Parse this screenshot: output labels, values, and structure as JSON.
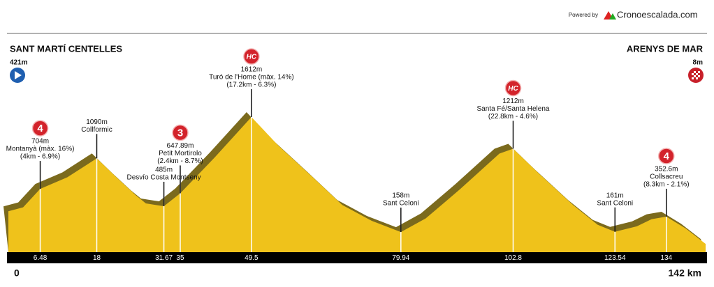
{
  "header": {
    "powered": "Powered by",
    "brand": "Cronoescalada.com"
  },
  "chart_data": {
    "type": "area",
    "color": "#efc21b",
    "shade_color": "#7b6a1d",
    "start": {
      "name": "SANT MARTÍ CENTELLES",
      "label": "421m"
    },
    "finish": {
      "name": "ARENYS DE MAR",
      "label": "8m"
    },
    "x": [
      0,
      3,
      6.48,
      12,
      18,
      22,
      26,
      28,
      30,
      31.67,
      35,
      42,
      49.5,
      55,
      62,
      68,
      74,
      79.94,
      85,
      92,
      100,
      102.8,
      108,
      115,
      120,
      123.54,
      128,
      131,
      134,
      138,
      142
    ],
    "values": [
      421,
      470,
      704,
      850,
      1090,
      850,
      620,
      520,
      500,
      485,
      647.89,
      1100,
      1612,
      1250,
      850,
      500,
      300,
      158,
      330,
      700,
      1150,
      1212,
      900,
      500,
      250,
      161,
      230,
      320,
      352.6,
      200,
      8
    ],
    "points": [
      {
        "x": 6.48,
        "value": 704,
        "value_label": "704m",
        "name": "Montanyà (màx. 16%)",
        "detail": "(4km - 6.9%)",
        "category": "4"
      },
      {
        "x": 18,
        "value": 1090,
        "value_label": "1090m",
        "name": "Collformic"
      },
      {
        "x": 31.67,
        "value": 485,
        "value_label": "485m",
        "name": "Desvío Costa Montseny"
      },
      {
        "x": 35,
        "value": 647.89,
        "value_label": "647.89m",
        "name": "Petit Mortirolo",
        "detail": "(2.4km - 8.7%)",
        "category": "3"
      },
      {
        "x": 49.5,
        "value": 1612,
        "value_label": "1612m",
        "name": "Turó de l'Home (màx. 14%)",
        "detail": "(17.2km - 6.3%)",
        "category": "HC"
      },
      {
        "x": 79.94,
        "value": 158,
        "value_label": "158m",
        "name": "Sant Celoni"
      },
      {
        "x": 102.8,
        "value": 1212,
        "value_label": "1212m",
        "name": "Santa Fé/Santa Helena",
        "detail": "(22.8km - 4.6%)",
        "category": "HC"
      },
      {
        "x": 123.54,
        "value": 161,
        "value_label": "161m",
        "name": "Sant Celoni"
      },
      {
        "x": 134,
        "value": 352.6,
        "value_label": "352.6m",
        "name": "Collsacreu",
        "detail": "(8.3km - 2.1%)",
        "category": "4"
      }
    ],
    "xlim": [
      0,
      142
    ],
    "xticks": [
      0,
      6.48,
      18,
      31.67,
      35,
      49.5,
      79.94,
      102.8,
      123.54,
      134,
      {
        "value": 142,
        "label": "142 km"
      }
    ]
  }
}
